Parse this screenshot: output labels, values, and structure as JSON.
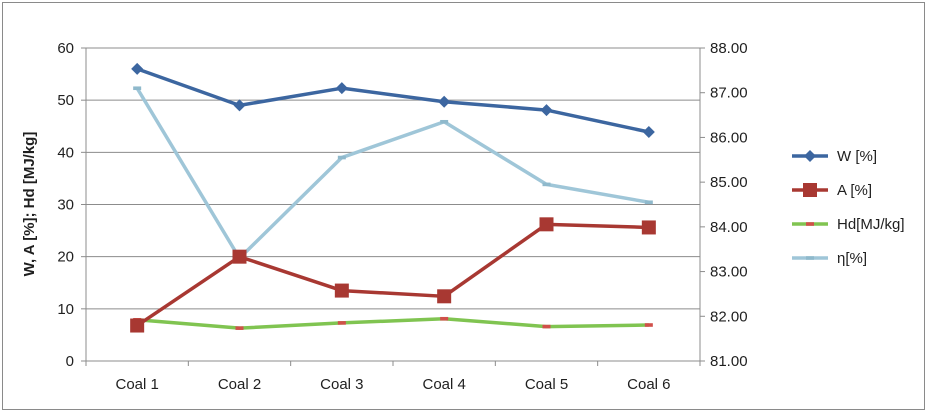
{
  "chart_data": {
    "type": "line",
    "categories": [
      "Coal 1",
      "Coal 2",
      "Coal 3",
      "Coal 4",
      "Coal 5",
      "Coal 6"
    ],
    "ylabel": "W, A [%]; Hd [MJ/kg]",
    "ylim": [
      0,
      60
    ],
    "yticks": [
      "0",
      "10",
      "20",
      "30",
      "40",
      "50",
      "60"
    ],
    "y2lim": [
      81,
      88
    ],
    "y2ticks": [
      "81.00",
      "82.00",
      "83.00",
      "84.00",
      "85.00",
      "86.00",
      "87.00",
      "88.00"
    ],
    "grid": true,
    "legend_position": "right",
    "series": [
      {
        "name": "W [%]",
        "axis": "left",
        "color": "#3c66a0",
        "marker": "diamond",
        "values": [
          56,
          49,
          52.3,
          49.7,
          48.1,
          43.9
        ]
      },
      {
        "name": "A [%]",
        "axis": "left",
        "color": "#a83832",
        "marker": "square",
        "values": [
          6.8,
          20,
          13.5,
          12.4,
          26.2,
          25.6
        ]
      },
      {
        "name": "Hd[MJ/kg]",
        "axis": "left",
        "color": "#80c451",
        "marker": "dash",
        "values": [
          7.9,
          6.3,
          7.3,
          8.1,
          6.6,
          6.9
        ]
      },
      {
        "name": "η[%]",
        "axis": "right",
        "color": "#9fc6d8",
        "marker": "dash",
        "values": [
          87.1,
          83.3,
          85.55,
          86.35,
          84.95,
          84.55
        ]
      }
    ]
  }
}
